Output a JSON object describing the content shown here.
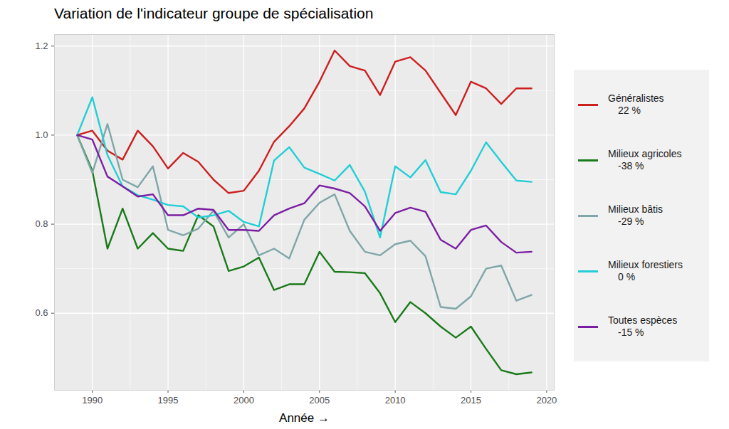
{
  "chart_data": {
    "type": "line",
    "title": "Variation de l'indicateur groupe de spécialisation",
    "x_label": "Année",
    "x": [
      1989,
      1990,
      1991,
      1992,
      1993,
      1994,
      1995,
      1996,
      1997,
      1998,
      1999,
      2000,
      2001,
      2002,
      2003,
      2004,
      2005,
      2006,
      2007,
      2008,
      2009,
      2010,
      2011,
      2012,
      2013,
      2014,
      2015,
      2016,
      2017,
      2018,
      2019
    ],
    "series": [
      {
        "name": "Généralistes",
        "color": "#CC1F1F",
        "variation": 22,
        "variation_label": "22 %",
        "values": [
          1.0,
          1.01,
          0.965,
          0.945,
          1.01,
          0.975,
          0.925,
          0.96,
          0.94,
          0.9,
          0.87,
          0.875,
          0.92,
          0.985,
          1.02,
          1.06,
          1.12,
          1.19,
          1.155,
          1.145,
          1.09,
          1.165,
          1.175,
          1.145,
          1.095,
          1.045,
          1.12,
          1.105,
          1.07,
          1.105,
          1.105
        ]
      },
      {
        "name": "Milieux agricoles",
        "color": "#1A7A1A",
        "variation": -38,
        "variation_label": "-38 %",
        "values": [
          1.0,
          0.92,
          0.745,
          0.835,
          0.745,
          0.78,
          0.745,
          0.74,
          0.82,
          0.795,
          0.695,
          0.705,
          0.725,
          0.652,
          0.665,
          0.665,
          0.738,
          0.693,
          0.692,
          0.69,
          0.645,
          0.58,
          0.625,
          0.6,
          0.57,
          0.545,
          0.57,
          0.52,
          0.472,
          0.463,
          0.467
        ]
      },
      {
        "name": "Milieux bâtis",
        "color": "#7FA6A8",
        "variation": -29,
        "variation_label": "-29 %",
        "values": [
          1.0,
          0.915,
          1.025,
          0.9,
          0.883,
          0.93,
          0.787,
          0.775,
          0.79,
          0.83,
          0.77,
          0.8,
          0.73,
          0.745,
          0.723,
          0.81,
          0.848,
          0.867,
          0.785,
          0.738,
          0.73,
          0.755,
          0.763,
          0.728,
          0.614,
          0.61,
          0.638,
          0.7,
          0.707,
          0.628,
          0.641
        ]
      },
      {
        "name": "Milieux forestiers",
        "color": "#22CED6",
        "variation": 0,
        "variation_label": "0 %",
        "values": [
          1.0,
          1.085,
          0.955,
          0.885,
          0.865,
          0.855,
          0.843,
          0.84,
          0.815,
          0.82,
          0.83,
          0.805,
          0.795,
          0.943,
          0.973,
          0.927,
          0.913,
          0.898,
          0.933,
          0.873,
          0.77,
          0.93,
          0.905,
          0.944,
          0.872,
          0.867,
          0.92,
          0.984,
          0.94,
          0.898,
          0.895
        ]
      },
      {
        "name": "Toutes espèces",
        "color": "#7B1FA2",
        "variation": -15,
        "variation_label": "-15 %",
        "values": [
          1.0,
          0.99,
          0.907,
          0.885,
          0.862,
          0.867,
          0.82,
          0.82,
          0.835,
          0.832,
          0.787,
          0.787,
          0.785,
          0.82,
          0.835,
          0.847,
          0.887,
          0.88,
          0.87,
          0.84,
          0.785,
          0.825,
          0.837,
          0.828,
          0.765,
          0.745,
          0.787,
          0.797,
          0.76,
          0.736,
          0.738
        ]
      }
    ],
    "xlim": [
      1987.5,
      2020.5
    ],
    "xticks": [
      1990,
      1995,
      2000,
      2005,
      2010,
      2015,
      2020
    ],
    "ylim": [
      0.427,
      1.226
    ],
    "yticks": [
      0.6,
      0.8,
      {
        "value": 1,
        "label": "1.0"
      },
      1.2
    ],
    "grid": true,
    "legend": "right"
  }
}
